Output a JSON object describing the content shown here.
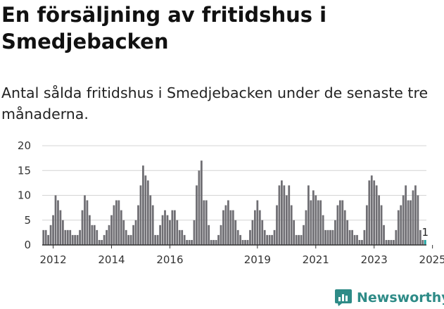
{
  "header": {
    "title": "En försäljning av fritidshus i Smedjebacken",
    "subtitle": "Antal sålda fritidshus i Smedjebacken under de senaste tre månaderna."
  },
  "brand": {
    "name": "Newsworthy",
    "color": "#2e8b87"
  },
  "colors": {
    "bar": "#6f6e73",
    "highlight": "#1aa39f",
    "grid": "#d4d4d4",
    "axis": "#333333"
  },
  "chart_data": {
    "type": "bar",
    "title": "Antal sålda fritidshus i Smedjebacken under de senaste tre månaderna",
    "xlabel": "",
    "ylabel": "",
    "ylim": [
      0,
      20
    ],
    "y_ticks": [
      0,
      5,
      10,
      15,
      20
    ],
    "x_ticks": [
      "2012",
      "2014",
      "2016",
      "2019",
      "2021",
      "2023",
      "2025"
    ],
    "x_tick_index": [
      4,
      28,
      52,
      88,
      112,
      136,
      160
    ],
    "start": "2012-01",
    "values": [
      3,
      3,
      2,
      4,
      6,
      10,
      9,
      7,
      5,
      3,
      3,
      3,
      2,
      2,
      2,
      3,
      7,
      10,
      9,
      6,
      4,
      4,
      3,
      1,
      1,
      2,
      3,
      4,
      6,
      8,
      9,
      9,
      7,
      5,
      3,
      2,
      2,
      4,
      5,
      8,
      12,
      16,
      14,
      13,
      10,
      8,
      2,
      2,
      4,
      6,
      7,
      6,
      5,
      7,
      7,
      5,
      3,
      3,
      2,
      1,
      1,
      1,
      5,
      12,
      15,
      17,
      9,
      9,
      4,
      1,
      1,
      1,
      2,
      4,
      7,
      8,
      9,
      7,
      7,
      5,
      3,
      2,
      1,
      1,
      1,
      3,
      5,
      7,
      9,
      7,
      5,
      3,
      2,
      2,
      2,
      3,
      8,
      12,
      13,
      12,
      10,
      12,
      8,
      5,
      2,
      2,
      2,
      4,
      7,
      12,
      9,
      11,
      10,
      9,
      9,
      6,
      3,
      3,
      3,
      3,
      5,
      8,
      9,
      9,
      7,
      5,
      3,
      3,
      2,
      2,
      1,
      1,
      3,
      8,
      13,
      14,
      13,
      12,
      10,
      8,
      4,
      1,
      1,
      1,
      1,
      3,
      7,
      8,
      10,
      12,
      9,
      9,
      11,
      12,
      10,
      3,
      1,
      1
    ],
    "highlight_last": 1,
    "annotation": {
      "label": "1",
      "value": 1
    }
  }
}
